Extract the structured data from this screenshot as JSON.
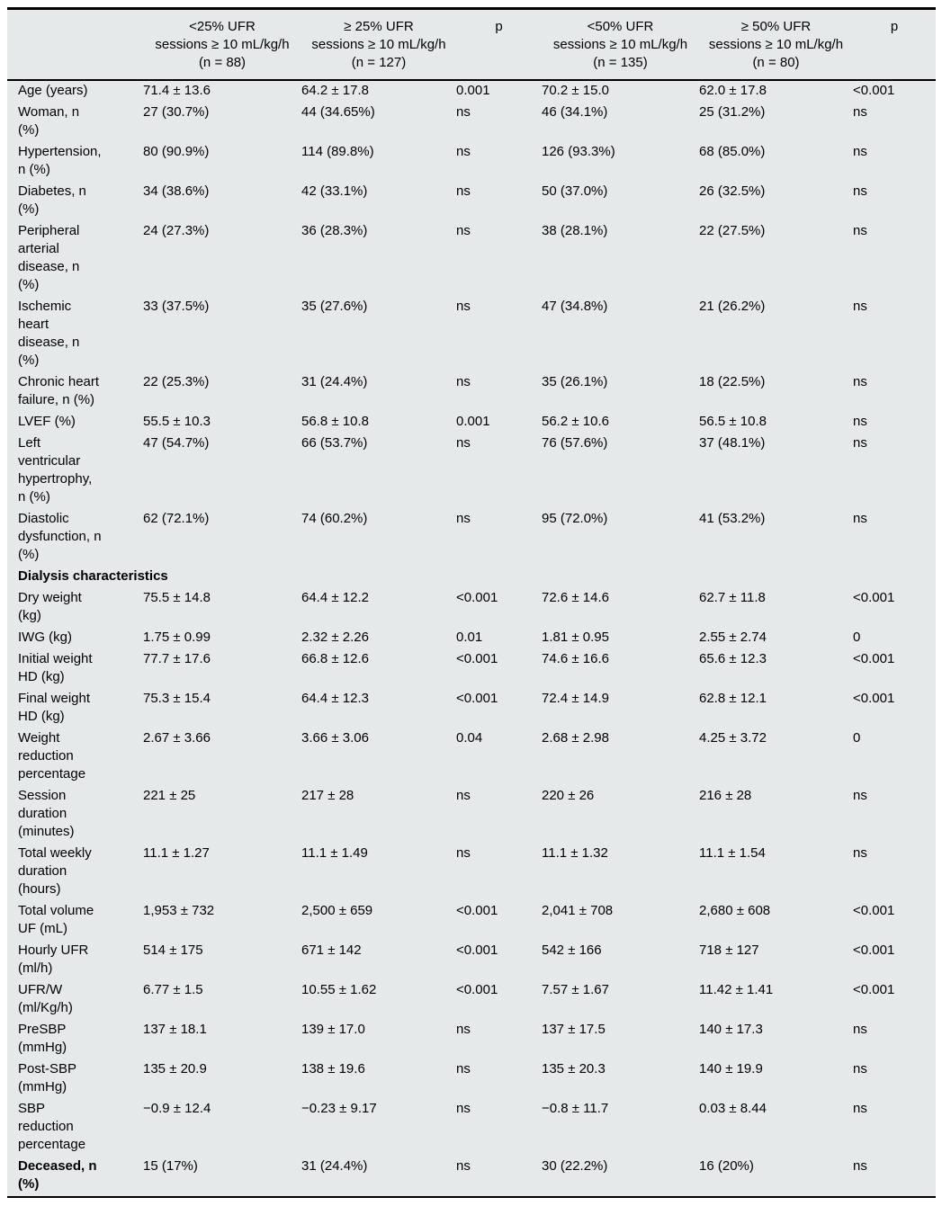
{
  "colors": {
    "table_background": "#e6e9ea",
    "border": "#000000",
    "text": "#000000",
    "page_background": "#ffffff"
  },
  "table": {
    "columns": [
      {
        "label": ""
      },
      {
        "label": "<25% UFR\nsessions ≥ 10 mL/kg/h\n(n = 88)"
      },
      {
        "label": "≥ 25% UFR\nsessions ≥ 10 mL/kg/h\n(n = 127)"
      },
      {
        "label": "p"
      },
      {
        "label": "<50% UFR\nsessions ≥ 10 mL/kg/h\n(n = 135)"
      },
      {
        "label": "≥ 50% UFR\nsessions ≥ 10 mL/kg/h\n(n = 80)"
      },
      {
        "label": "p"
      }
    ],
    "rows": [
      {
        "type": "data",
        "label": "Age (years)",
        "values": [
          "71.4 ± 13.6",
          "64.2 ± 17.8",
          "0.001",
          "70.2 ± 15.0",
          "62.0 ± 17.8",
          "<0.001"
        ]
      },
      {
        "type": "data",
        "label": "Woman, n\n(%)",
        "values": [
          "27 (30.7%)",
          "44 (34.65%)",
          "ns",
          "46 (34.1%)",
          "25 (31.2%)",
          "ns"
        ]
      },
      {
        "type": "data",
        "label": "Hypertension,\nn (%)",
        "values": [
          "80 (90.9%)",
          "114 (89.8%)",
          "ns",
          "126 (93.3%)",
          "68 (85.0%)",
          "ns"
        ]
      },
      {
        "type": "data",
        "label": "Diabetes, n\n(%)",
        "values": [
          "34 (38.6%)",
          "42 (33.1%)",
          "ns",
          "50 (37.0%)",
          "26 (32.5%)",
          "ns"
        ]
      },
      {
        "type": "data",
        "label": "Peripheral\narterial\ndisease, n\n(%)",
        "values": [
          "24 (27.3%)",
          "36 (28.3%)",
          "ns",
          "38 (28.1%)",
          "22 (27.5%)",
          "ns"
        ]
      },
      {
        "type": "data",
        "label": "Ischemic\nheart\ndisease, n\n(%)",
        "values": [
          "33 (37.5%)",
          "35 (27.6%)",
          "ns",
          "47 (34.8%)",
          "21 (26.2%)",
          "ns"
        ]
      },
      {
        "type": "data",
        "label": "Chronic heart\nfailure, n (%)",
        "values": [
          "22 (25.3%)",
          "31 (24.4%)",
          "ns",
          "35 (26.1%)",
          "18 (22.5%)",
          "ns"
        ]
      },
      {
        "type": "data",
        "label": "LVEF (%)",
        "values": [
          "55.5 ± 10.3",
          "56.8 ± 10.8",
          "0.001",
          "56.2 ± 10.6",
          "56.5 ± 10.8",
          "ns"
        ]
      },
      {
        "type": "data",
        "label": "Left\nventricular\nhypertrophy,\nn (%)",
        "values": [
          "47 (54.7%)",
          "66 (53.7%)",
          "ns",
          "76 (57.6%)",
          "37 (48.1%)",
          "ns"
        ]
      },
      {
        "type": "data",
        "label": "Diastolic\ndysfunction, n\n(%)",
        "values": [
          "62 (72.1%)",
          "74 (60.2%)",
          "ns",
          "95 (72.0%)",
          "41 (53.2%)",
          "ns"
        ]
      },
      {
        "type": "section",
        "label": "Dialysis characteristics"
      },
      {
        "type": "data",
        "label": "Dry weight\n(kg)",
        "values": [
          "75.5 ± 14.8",
          "64.4 ± 12.2",
          "<0.001",
          "72.6 ± 14.6",
          "62.7 ± 11.8",
          "<0.001"
        ]
      },
      {
        "type": "data",
        "label": "IWG (kg)",
        "values": [
          "1.75 ± 0.99",
          "2.32 ± 2.26",
          "0.01",
          "1.81 ± 0.95",
          "2.55 ± 2.74",
          "0"
        ]
      },
      {
        "type": "data",
        "label": "Initial weight\nHD (kg)",
        "values": [
          "77.7 ± 17.6",
          "66.8 ± 12.6",
          "<0.001",
          "74.6 ± 16.6",
          "65.6 ± 12.3",
          "<0.001"
        ]
      },
      {
        "type": "data",
        "label": "Final weight\nHD (kg)",
        "values": [
          "75.3 ± 15.4",
          "64.4 ± 12.3",
          "<0.001",
          "72.4 ± 14.9",
          "62.8 ± 12.1",
          "<0.001"
        ]
      },
      {
        "type": "data",
        "label": "Weight\nreduction\npercentage",
        "values": [
          "2.67 ± 3.66",
          "3.66 ± 3.06",
          "0.04",
          "2.68 ± 2.98",
          "4.25 ± 3.72",
          "0"
        ]
      },
      {
        "type": "data",
        "label": "Session\nduration\n(minutes)",
        "values": [
          "221 ± 25",
          "217 ± 28",
          "ns",
          "220 ± 26",
          "216 ± 28",
          "ns"
        ]
      },
      {
        "type": "data",
        "label": "Total weekly\nduration\n(hours)",
        "values": [
          "11.1 ± 1.27",
          "11.1 ± 1.49",
          "ns",
          "11.1 ± 1.32",
          "11.1 ± 1.54",
          "ns"
        ]
      },
      {
        "type": "data",
        "label": "Total volume\nUF (mL)",
        "values": [
          "1,953 ± 732",
          "2,500 ± 659",
          "<0.001",
          "2,041 ± 708",
          "2,680 ± 608",
          "<0.001"
        ]
      },
      {
        "type": "data",
        "label": "Hourly UFR\n(ml/h)",
        "values": [
          "514 ± 175",
          "671 ± 142",
          "<0.001",
          "542 ± 166",
          "718 ± 127",
          "<0.001"
        ]
      },
      {
        "type": "data",
        "label": "UFR/W\n(ml/Kg/h)",
        "values": [
          "6.77 ± 1.5",
          "10.55 ± 1.62",
          "<0.001",
          "7.57 ± 1.67",
          "11.42 ± 1.41",
          "<0.001"
        ]
      },
      {
        "type": "data",
        "label": "PreSBP\n(mmHg)",
        "values": [
          "137 ± 18.1",
          "139 ± 17.0",
          "ns",
          "137 ± 17.5",
          "140 ± 17.3",
          "ns"
        ]
      },
      {
        "type": "data",
        "label": "Post-SBP\n(mmHg)",
        "values": [
          "135 ± 20.9",
          "138 ± 19.6",
          "ns",
          "135 ± 20.3",
          "140 ± 19.9",
          "ns"
        ]
      },
      {
        "type": "data",
        "label": "SBP\nreduction\npercentage",
        "values": [
          "−0.9 ± 12.4",
          "−0.23 ± 9.17",
          "ns",
          "−0.8 ± 11.7",
          "0.03 ± 8.44",
          "ns"
        ]
      },
      {
        "type": "data",
        "bold": true,
        "label": "Deceased, n\n(%)",
        "values": [
          "15 (17%)",
          "31 (24.4%)",
          "ns",
          "30 (22.2%)",
          "16 (20%)",
          "ns"
        ]
      }
    ]
  }
}
